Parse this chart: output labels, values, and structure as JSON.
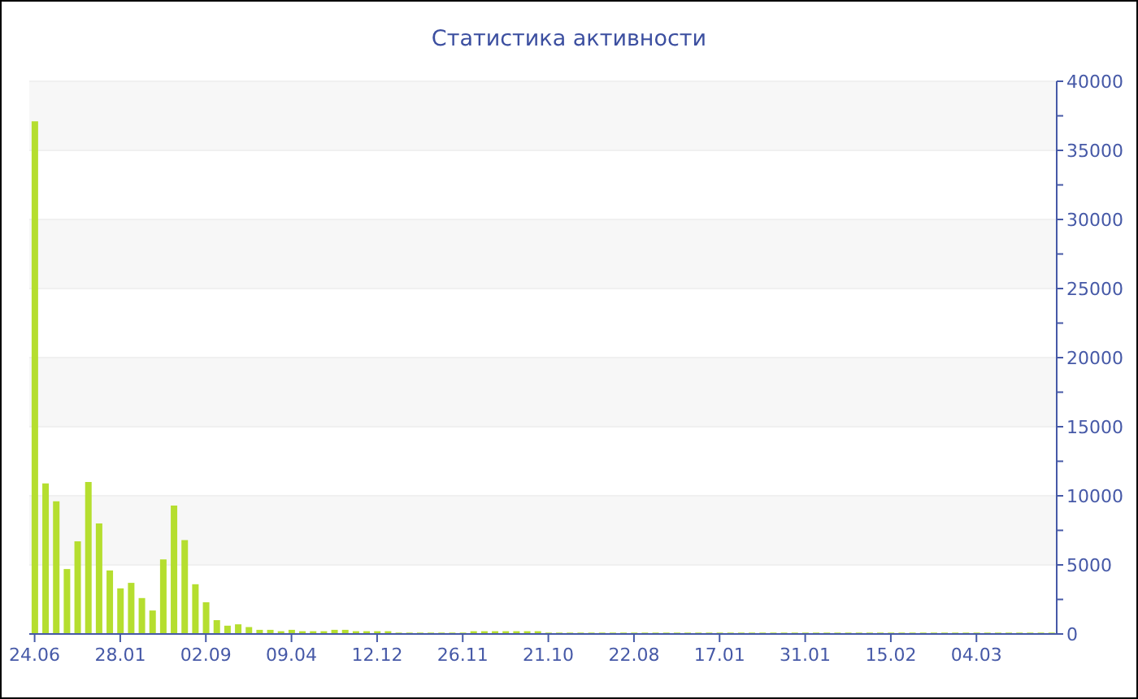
{
  "chart_data": {
    "type": "bar",
    "title": "Статистика активности",
    "categories": [
      "24.06",
      null,
      null,
      null,
      null,
      null,
      null,
      null,
      "28.01",
      null,
      null,
      null,
      null,
      null,
      null,
      null,
      "02.09",
      null,
      null,
      null,
      null,
      null,
      null,
      null,
      "09.04",
      null,
      null,
      null,
      null,
      null,
      null,
      null,
      "12.12",
      null,
      null,
      null,
      null,
      null,
      null,
      null,
      "26.11",
      null,
      null,
      null,
      null,
      null,
      null,
      null,
      "21.10",
      null,
      null,
      null,
      null,
      null,
      null,
      null,
      "22.08",
      null,
      null,
      null,
      null,
      null,
      null,
      null,
      "17.01",
      null,
      null,
      null,
      null,
      null,
      null,
      null,
      "31.01",
      null,
      null,
      null,
      null,
      null,
      null,
      null,
      "15.02",
      null,
      null,
      null,
      null,
      null,
      null,
      null,
      "04.03",
      null,
      null,
      null,
      null,
      null,
      null,
      null
    ],
    "values": [
      37100,
      10900,
      9600,
      4700,
      6700,
      11000,
      8000,
      4600,
      3300,
      3700,
      2600,
      1700,
      5400,
      9300,
      6800,
      3600,
      2300,
      1000,
      600,
      700,
      500,
      300,
      300,
      200,
      300,
      200,
      200,
      200,
      300,
      300,
      200,
      200,
      200,
      200,
      100,
      100,
      100,
      100,
      100,
      100,
      100,
      200,
      200,
      200,
      200,
      200,
      200,
      200,
      100,
      100,
      100,
      100,
      100,
      100,
      100,
      100,
      100,
      100,
      100,
      100,
      100,
      100,
      100,
      100,
      100,
      100,
      100,
      100,
      100,
      100,
      100,
      100,
      100,
      100,
      100,
      100,
      100,
      100,
      100,
      100,
      100,
      100,
      100,
      100,
      100,
      100,
      100,
      100,
      100,
      100,
      100,
      100,
      100,
      100,
      100,
      100
    ],
    "color": "#b5de2f",
    "ylim": [
      0,
      40000
    ],
    "yticks": [
      0,
      {
        "value": 2500,
        "label": null
      },
      5000,
      {
        "value": 7500,
        "label": null
      },
      10000,
      {
        "value": 12500,
        "label": null
      },
      15000,
      {
        "value": 17500,
        "label": null
      },
      20000,
      {
        "value": 22500,
        "label": null
      },
      25000,
      {
        "value": 27500,
        "label": null
      },
      30000,
      {
        "value": 32500,
        "label": null
      },
      35000,
      {
        "value": 37500,
        "label": null
      },
      40000
    ],
    "grid": "y"
  }
}
